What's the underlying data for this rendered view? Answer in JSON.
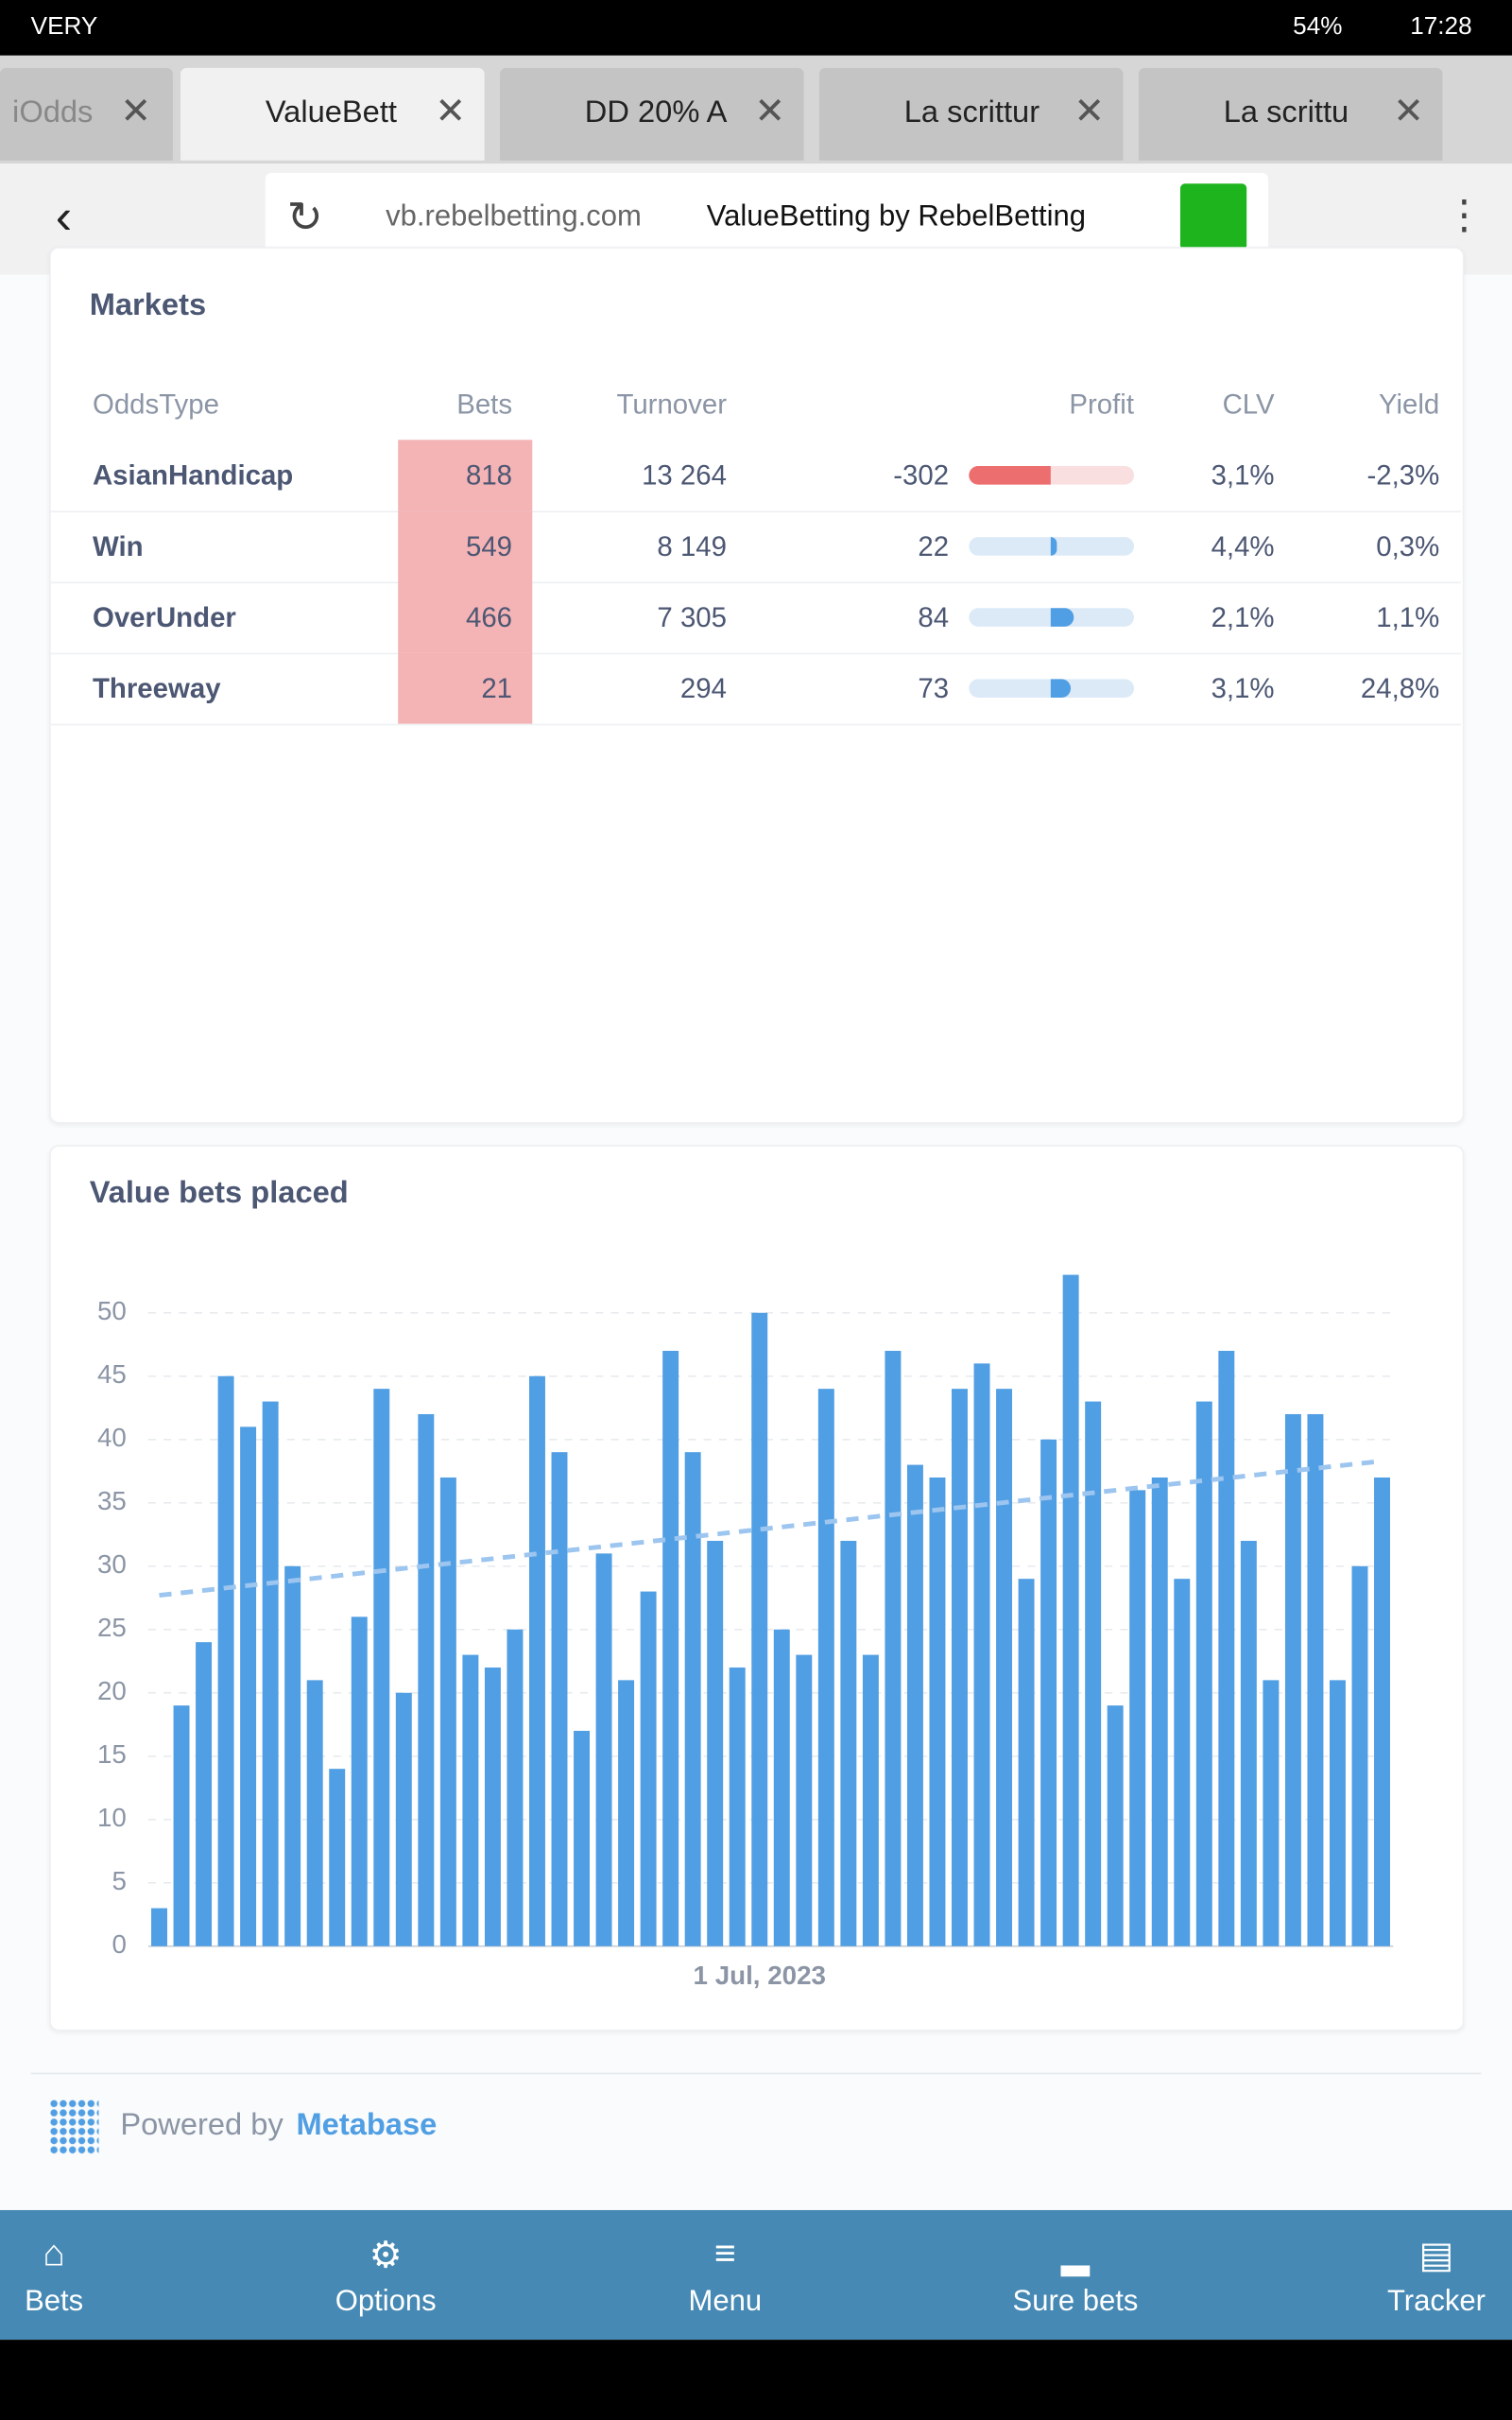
{
  "status_bar": {
    "carrier": "VERY",
    "battery": "54%",
    "time": "17:28"
  },
  "tabs": [
    "iOdds",
    "ValueBett",
    "DD 20% A",
    "La scrittur",
    "La scrittu"
  ],
  "address_bar": {
    "url": "vb.rebelbetting.com",
    "page_title": "ValueBetting by RebelBetting"
  },
  "markets": {
    "title": "Markets",
    "columns": [
      "OddsType",
      "Bets",
      "Turnover",
      "Profit",
      "CLV",
      "Yield"
    ],
    "rows": [
      {
        "odds_type": "AsianHandicap",
        "bets": 818,
        "turnover": "13 264",
        "profit": -302,
        "clv": "3,1%",
        "yield": "-2,3%"
      },
      {
        "odds_type": "Win",
        "bets": 549,
        "turnover": "8 149",
        "profit": 22,
        "clv": "4,4%",
        "yield": "0,3%"
      },
      {
        "odds_type": "OverUnder",
        "bets": 466,
        "turnover": "7 305",
        "profit": 84,
        "clv": "2,1%",
        "yield": "1,1%"
      },
      {
        "odds_type": "Threeway",
        "bets": 21,
        "turnover": "294",
        "profit": 73,
        "clv": "3,1%",
        "yield": "24,8%"
      }
    ]
  },
  "chart_data": {
    "type": "bar",
    "title": "Value bets placed",
    "color": "#509ee3",
    "categories": [
      null,
      null,
      null,
      null,
      null,
      null,
      null,
      null,
      null,
      null,
      null,
      null,
      null,
      null,
      null,
      null,
      null,
      null,
      null,
      null,
      null,
      null,
      null,
      null,
      null,
      null,
      null,
      "1 Jul, 2023",
      null,
      null,
      null,
      null,
      null,
      null,
      null,
      null,
      null,
      null,
      null,
      null,
      null,
      null,
      null,
      null,
      null,
      null,
      null,
      null,
      null,
      null,
      null,
      null,
      null,
      null,
      null,
      null
    ],
    "values": [
      3,
      19,
      24,
      45,
      41,
      43,
      30,
      21,
      14,
      26,
      44,
      20,
      42,
      37,
      23,
      22,
      25,
      45,
      39,
      17,
      31,
      21,
      28,
      47,
      39,
      32,
      22,
      50,
      25,
      23,
      44,
      32,
      23,
      47,
      38,
      37,
      44,
      46,
      44,
      29,
      40,
      53,
      43,
      19,
      36,
      37,
      29,
      43,
      47,
      32,
      21,
      42,
      42,
      21,
      30,
      37
    ],
    "trend_values": [
      27.7,
      38.3
    ],
    "trend_color": "#9cc5ef",
    "ylim": [
      0,
      53
    ],
    "yticks": [
      0,
      5,
      10,
      15,
      20,
      25,
      30,
      35,
      40,
      45,
      50
    ],
    "grid": true
  },
  "footer": {
    "powered_by": "Powered by",
    "brand": "Metabase"
  },
  "nav": [
    "Bets",
    "Options",
    "Menu",
    "Sure bets",
    "Tracker"
  ]
}
